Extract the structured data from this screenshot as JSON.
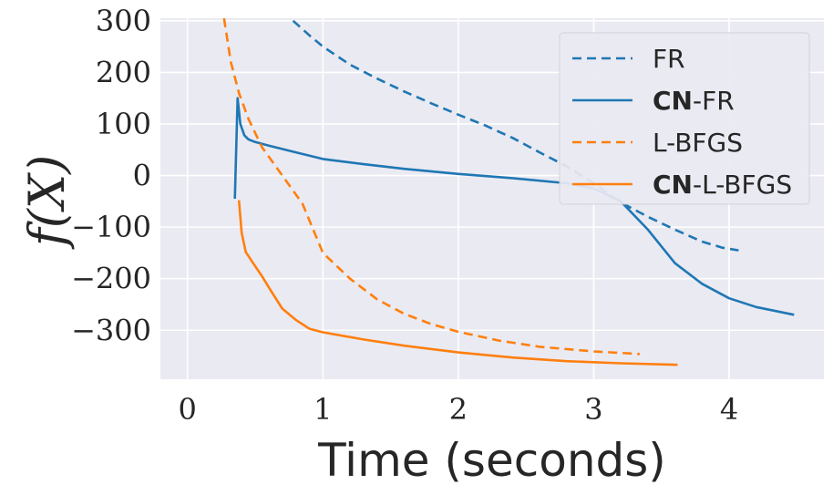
{
  "chart_data": {
    "type": "line",
    "title": "",
    "xlabel": "Time (seconds)",
    "ylabel": "f(X)",
    "xlim": [
      -0.2,
      4.7
    ],
    "ylim": [
      -395,
      305
    ],
    "xticks": [
      0,
      1,
      2,
      3,
      4
    ],
    "xtick_labels": [
      "0",
      "1",
      "2",
      "3",
      "4"
    ],
    "yticks": [
      300,
      200,
      100,
      0,
      -100,
      -200,
      -300
    ],
    "ytick_labels": [
      "300",
      "200",
      "100",
      "0",
      "−100",
      "−200",
      "−300"
    ],
    "grid": true,
    "legend_position": "top-right",
    "series": [
      {
        "name": "FR",
        "legend_prefix": "",
        "legend_suffix": "FR",
        "color": "#1f77b4",
        "dash": "dashed",
        "x": [
          0.78,
          0.9,
          1.0,
          1.2,
          1.4,
          1.6,
          1.8,
          2.0,
          2.2,
          2.4,
          2.6,
          2.8,
          3.0,
          3.2,
          3.4,
          3.6,
          3.8,
          3.95,
          4.07
        ],
        "y": [
          300,
          272,
          250,
          215,
          188,
          163,
          140,
          118,
          97,
          73,
          45,
          18,
          -15,
          -52,
          -80,
          -105,
          -128,
          -140,
          -145
        ]
      },
      {
        "name": "CN-FR",
        "legend_prefix": "CN",
        "legend_suffix": "-FR",
        "color": "#1f77b4",
        "dash": "solid",
        "x": [
          0.35,
          0.37,
          0.39,
          0.42,
          0.45,
          0.5,
          0.6,
          0.8,
          1.0,
          1.3,
          1.6,
          2.0,
          2.4,
          2.8,
          3.0,
          3.2,
          3.4,
          3.6,
          3.8,
          4.0,
          4.2,
          4.48
        ],
        "y": [
          -45,
          150,
          100,
          78,
          70,
          65,
          58,
          45,
          32,
          22,
          13,
          3,
          -5,
          -15,
          -25,
          -50,
          -105,
          -170,
          -210,
          -238,
          -255,
          -270
        ]
      },
      {
        "name": "L-BFGS",
        "legend_prefix": "",
        "legend_suffix": "L-BFGS",
        "color": "#ff7f0e",
        "dash": "dashed",
        "x": [
          0.27,
          0.32,
          0.38,
          0.45,
          0.55,
          0.7,
          0.85,
          1.0,
          1.2,
          1.4,
          1.6,
          1.8,
          2.0,
          2.3,
          2.6,
          3.0,
          3.34
        ],
        "y": [
          305,
          220,
          160,
          110,
          55,
          0,
          -55,
          -150,
          -200,
          -240,
          -268,
          -288,
          -303,
          -320,
          -332,
          -341,
          -346
        ]
      },
      {
        "name": "CN-L-BFGS",
        "legend_prefix": "CN",
        "legend_suffix": "-L-BFGS",
        "color": "#ff7f0e",
        "dash": "solid",
        "x": [
          0.38,
          0.4,
          0.43,
          0.48,
          0.55,
          0.62,
          0.7,
          0.8,
          0.9,
          1.0,
          1.3,
          1.6,
          2.0,
          2.4,
          2.8,
          3.2,
          3.62
        ],
        "y": [
          -48,
          -110,
          -148,
          -168,
          -195,
          -225,
          -258,
          -280,
          -297,
          -304,
          -318,
          -330,
          -343,
          -353,
          -360,
          -364,
          -367
        ]
      }
    ]
  }
}
